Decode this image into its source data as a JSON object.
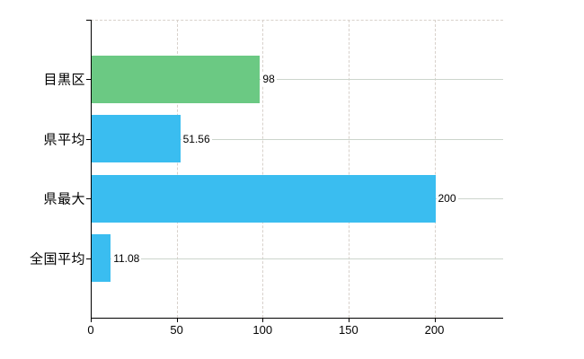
{
  "chart_data": {
    "type": "bar",
    "orientation": "horizontal",
    "title": "",
    "xlabel": "",
    "ylabel": "",
    "categories": [
      "目黒区",
      "県平均",
      "県最大",
      "全国平均"
    ],
    "values": [
      98,
      51.56,
      200,
      11.08
    ],
    "value_labels": [
      "98",
      "51.56",
      "200",
      "11.08"
    ],
    "bar_colors": [
      "#6BC983",
      "#3ABDF0",
      "#3ABDF0",
      "#3ABDF0"
    ],
    "xlim": [
      0,
      240
    ],
    "xticks": [
      0,
      50,
      100,
      150,
      200
    ],
    "xtick_labels": [
      "0",
      "50",
      "100",
      "150",
      "200"
    ],
    "grid": true,
    "legend": false
  },
  "colors": {
    "background": "#ffffff",
    "axis": "#000000",
    "text": "#000000",
    "grid_horizontal": "#ccd5cc",
    "grid_vertical": "#d8d1cb",
    "value_label_background": "#ffffff"
  }
}
